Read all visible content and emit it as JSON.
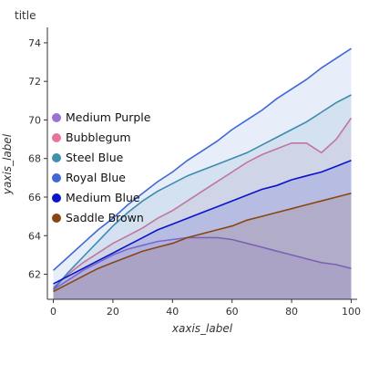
{
  "chart_data": {
    "type": "area",
    "title": "title",
    "xlabel": "xaxis_label",
    "ylabel": "yaxis_label",
    "xlim": [
      -2,
      102
    ],
    "ylim": [
      60.7,
      74.8
    ],
    "xticks": [
      0,
      20,
      40,
      60,
      80,
      100
    ],
    "yticks": [
      62,
      64,
      66,
      68,
      70,
      72,
      74
    ],
    "grid": false,
    "legend_position": "left",
    "series": [
      {
        "name": "Medium Purple",
        "color": "#9b72d6",
        "x": [
          0,
          5,
          10,
          15,
          20,
          25,
          30,
          35,
          40,
          45,
          50,
          55,
          60,
          65,
          70,
          75,
          80,
          85,
          90,
          95,
          100
        ],
        "y": [
          61.2,
          61.7,
          62.2,
          62.6,
          63.0,
          63.3,
          63.5,
          63.7,
          63.8,
          63.9,
          63.9,
          63.9,
          63.8,
          63.6,
          63.4,
          63.2,
          63.0,
          62.8,
          62.6,
          62.5,
          62.3
        ]
      },
      {
        "name": "Bubblegum",
        "color": "#e8749a",
        "x": [
          0,
          5,
          10,
          15,
          20,
          25,
          30,
          35,
          40,
          45,
          50,
          55,
          60,
          65,
          70,
          75,
          80,
          85,
          90,
          95,
          100
        ],
        "y": [
          61.3,
          62.0,
          62.6,
          63.1,
          63.6,
          64.0,
          64.4,
          64.9,
          65.3,
          65.8,
          66.3,
          66.8,
          67.3,
          67.8,
          68.2,
          68.5,
          68.8,
          68.8,
          68.3,
          69.0,
          70.1
        ]
      },
      {
        "name": "Steel Blue",
        "color": "#3d91aa",
        "x": [
          0,
          5,
          10,
          15,
          20,
          25,
          30,
          35,
          40,
          45,
          50,
          55,
          60,
          65,
          70,
          75,
          80,
          85,
          90,
          95,
          100
        ],
        "y": [
          61.2,
          62.1,
          62.9,
          63.7,
          64.5,
          65.2,
          65.8,
          66.3,
          66.7,
          67.1,
          67.4,
          67.7,
          68.0,
          68.3,
          68.7,
          69.1,
          69.5,
          69.9,
          70.4,
          70.9,
          71.3
        ]
      },
      {
        "name": "Royal Blue",
        "color": "#3f68d6",
        "x": [
          0,
          5,
          10,
          15,
          20,
          25,
          30,
          35,
          40,
          45,
          50,
          55,
          60,
          65,
          70,
          75,
          80,
          85,
          90,
          95,
          100
        ],
        "y": [
          62.2,
          62.9,
          63.6,
          64.3,
          64.9,
          65.6,
          66.2,
          66.8,
          67.3,
          67.9,
          68.4,
          68.9,
          69.5,
          70.0,
          70.5,
          71.1,
          71.6,
          72.1,
          72.7,
          73.2,
          73.7
        ]
      },
      {
        "name": "Medium Blue",
        "color": "#0a14c8",
        "x": [
          0,
          5,
          10,
          15,
          20,
          25,
          30,
          35,
          40,
          45,
          50,
          55,
          60,
          65,
          70,
          75,
          80,
          85,
          90,
          95,
          100
        ],
        "y": [
          61.5,
          61.9,
          62.3,
          62.7,
          63.1,
          63.5,
          63.9,
          64.3,
          64.6,
          64.9,
          65.2,
          65.5,
          65.8,
          66.1,
          66.4,
          66.6,
          66.9,
          67.1,
          67.3,
          67.6,
          67.9
        ]
      },
      {
        "name": "Saddle Brown",
        "color": "#8b4513",
        "x": [
          0,
          5,
          10,
          15,
          20,
          25,
          30,
          35,
          40,
          45,
          50,
          55,
          60,
          65,
          70,
          75,
          80,
          85,
          90,
          95,
          100
        ],
        "y": [
          61.1,
          61.5,
          61.9,
          62.3,
          62.6,
          62.9,
          63.2,
          63.4,
          63.6,
          63.9,
          64.1,
          64.3,
          64.5,
          64.8,
          65.0,
          65.2,
          65.4,
          65.6,
          65.8,
          66.0,
          66.2
        ]
      }
    ]
  }
}
